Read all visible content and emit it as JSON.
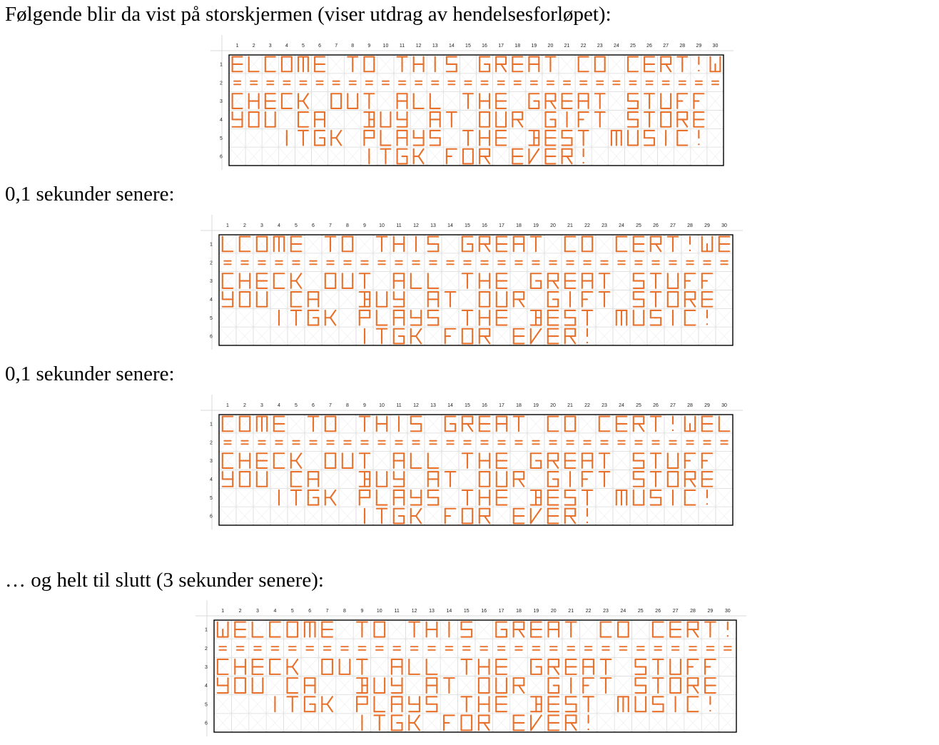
{
  "captions": [
    "Følgende blir da vist på storskjermen (viser utdrag av hendelsesforløpet):",
    "0,1 sekunder senere:",
    "0,1 sekunder senere:",
    "… og helt til slutt (3 sekunder senere):"
  ],
  "column_numbers": [
    "1",
    "2",
    "3",
    "4",
    "5",
    "6",
    "7",
    "8",
    "9",
    "10",
    "11",
    "12",
    "13",
    "14",
    "15",
    "16",
    "17",
    "18",
    "19",
    "20",
    "21",
    "22",
    "23",
    "24",
    "25",
    "26",
    "27",
    "28",
    "29",
    "30"
  ],
  "row_numbers": [
    "1",
    "2",
    "3",
    "4",
    "5",
    "6"
  ],
  "colors": {
    "led": "#e8702a",
    "grid_light": "#d9d9d9",
    "border": "#000000",
    "header": "#222222"
  },
  "frames": [
    {
      "rows": [
        "ELCOME TO THIS GREAT CONCERT!W",
        "==============================",
        "CHECK OUT ALL THE GREAT STUFF",
        "YOU CAN BUY AT OUR GIFT STORE",
        "   ITGK PLAYS THE BEST MUSIC!",
        "        ITGK FOR EVER!"
      ]
    },
    {
      "rows": [
        "LCOME TO THIS GREAT CONCERT!WE",
        "==============================",
        "CHECK OUT ALL THE GREAT STUFF",
        "YOU CAN BUY AT OUR GIFT STORE",
        "   ITGK PLAYS THE BEST MUSIC!",
        "        ITGK FOR EVER!"
      ]
    },
    {
      "rows": [
        "COME TO THIS GREAT CONCERT!WEL",
        "==============================",
        "CHECK OUT ALL THE GREAT STUFF",
        "YOU CAN BUY AT OUR GIFT STORE",
        "   ITGK PLAYS THE BEST MUSIC!",
        "        ITGK FOR EVER!"
      ]
    },
    {
      "rows": [
        "WELCOME TO THIS GREAT CONCERT!",
        "==============================",
        "CHECK OUT ALL THE GREAT STUFF",
        "YOU CAN BUY AT OUR GIFT STORE",
        "   ITGK PLAYS THE BEST MUSIC!",
        "        ITGK FOR EVER!"
      ]
    }
  ]
}
